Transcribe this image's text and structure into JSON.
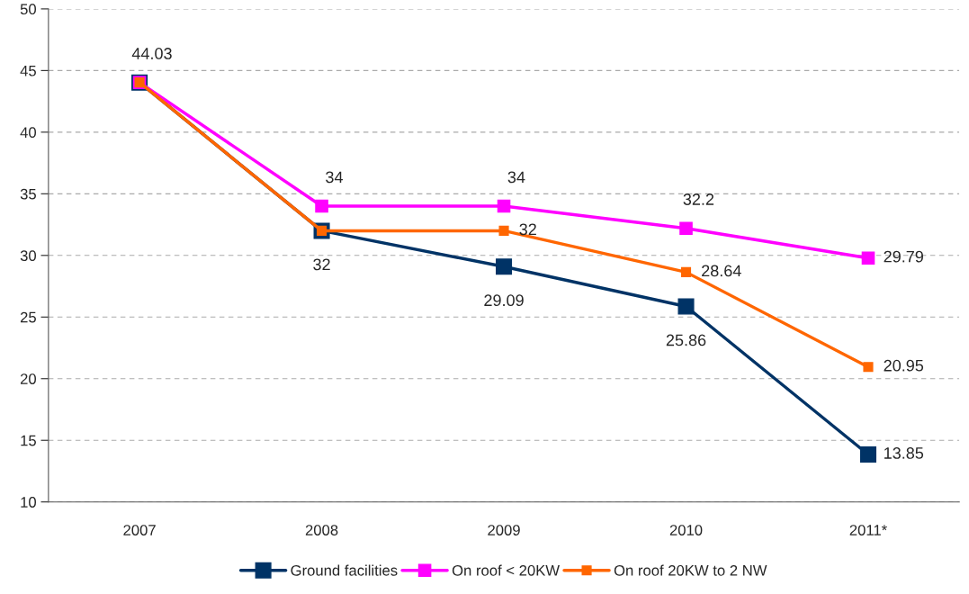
{
  "chart_data": {
    "type": "line",
    "categories": [
      "2007",
      "2008",
      "2009",
      "2010",
      "2011*"
    ],
    "series": [
      {
        "name": "Ground facilities",
        "color": "#003366",
        "values": [
          44.03,
          32,
          29.09,
          25.86,
          13.85
        ],
        "value_labels": [
          "44.03",
          "32",
          "29.09",
          "25.86",
          "13.85"
        ]
      },
      {
        "name": "On roof < 20KW",
        "color": "#ff00ff",
        "values": [
          44.03,
          34,
          34,
          32.2,
          29.79
        ],
        "value_labels": [
          null,
          "34",
          "34",
          "32.2",
          "29.79"
        ]
      },
      {
        "name": "On roof 20KW to 2 NW",
        "color": "#ff6600",
        "values": [
          44.03,
          32,
          32,
          28.64,
          20.95
        ],
        "value_labels": [
          null,
          null,
          "32",
          "28.64",
          "20.95"
        ]
      }
    ],
    "ylim": [
      10,
      50
    ],
    "yticks": [
      10,
      15,
      20,
      25,
      30,
      35,
      40,
      45,
      50
    ],
    "grid": "y",
    "legend": "bottom",
    "marker": "square",
    "line_style": "solid"
  }
}
